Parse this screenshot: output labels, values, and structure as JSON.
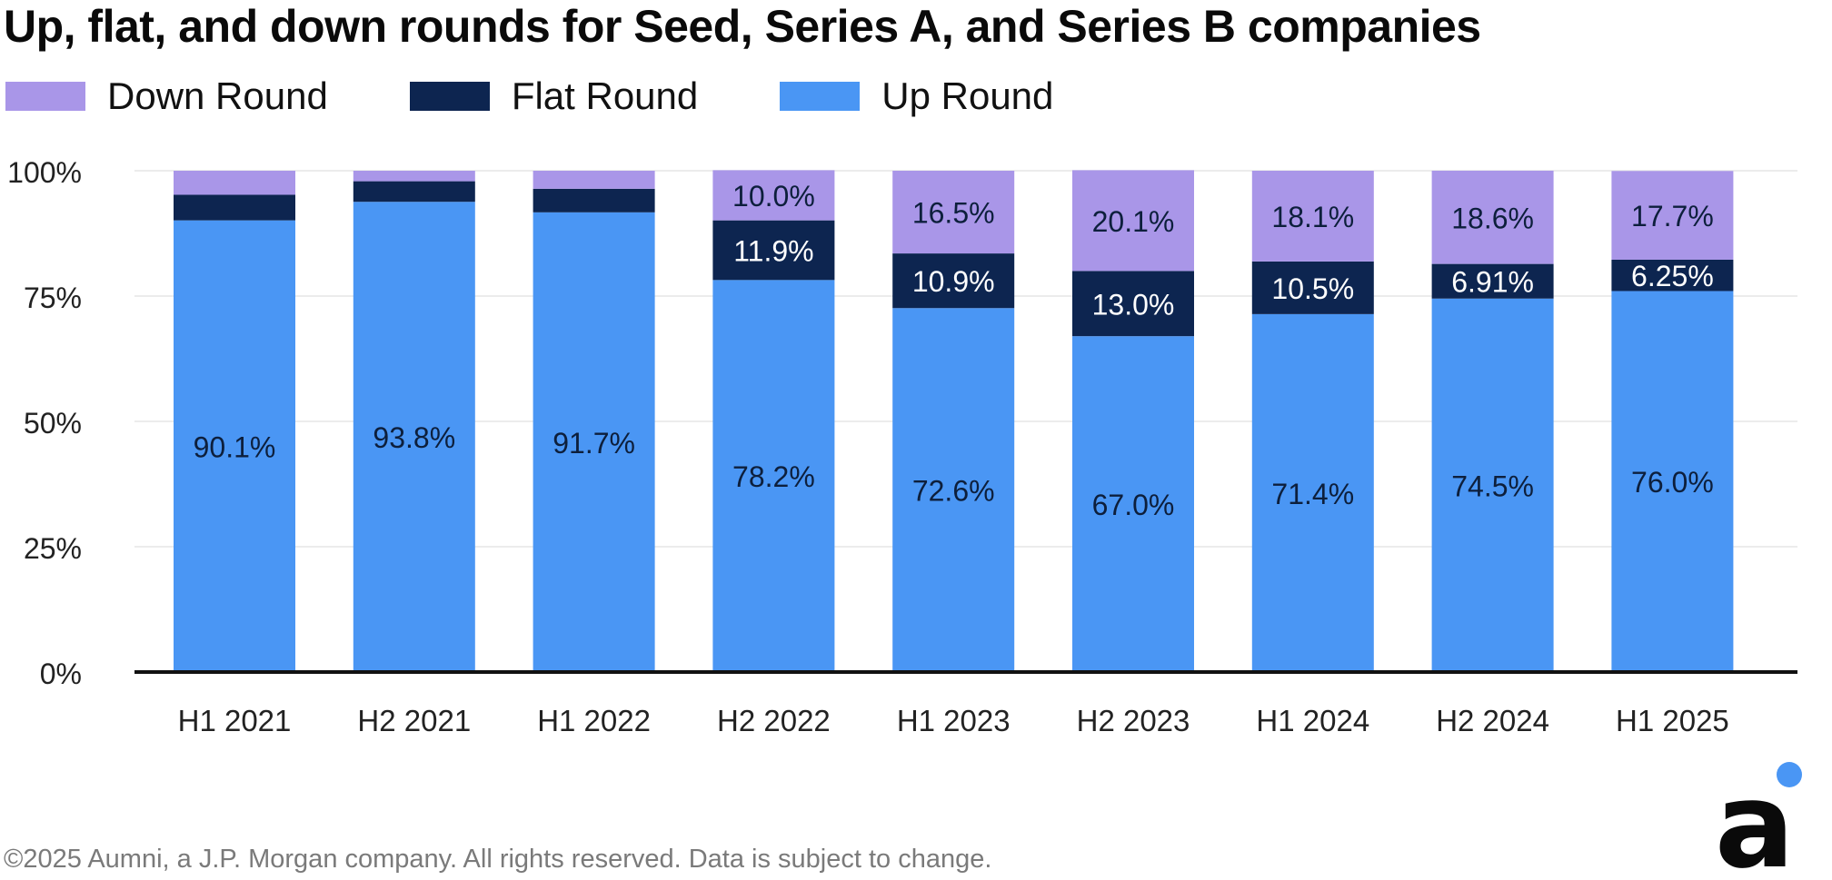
{
  "page": {
    "title": "Up, flat, and down rounds for Seed, Series A, and Series B companies",
    "footer": "©2025 Aumni, a J.P. Morgan company. All rights reserved. Data is subject to change.",
    "logo_glyph": "a",
    "colors": {
      "up": "#4a96f4",
      "flat": "#0d2550",
      "down": "#a996e8",
      "logo_dot": "#4a96f4",
      "logo_text": "#0a0a0a"
    }
  },
  "legend": [
    {
      "label": "Down Round",
      "color": "#a996e8"
    },
    {
      "label": "Flat Round",
      "color": "#0d2550"
    },
    {
      "label": "Up Round",
      "color": "#4a96f4"
    }
  ],
  "chart_data": {
    "type": "bar",
    "stacked": true,
    "title": "Up, flat, and down rounds for Seed, Series A, and Series B companies",
    "xlabel": "",
    "ylabel": "",
    "ylim": [
      0,
      100
    ],
    "y_ticks": [
      "0%",
      "25%",
      "50%",
      "75%",
      "100%"
    ],
    "y_tick_values": [
      0,
      25,
      50,
      75,
      100
    ],
    "grid": true,
    "legend_position": "top-left",
    "categories": [
      "H1 2021",
      "H2 2021",
      "H1 2022",
      "H2 2022",
      "H1 2023",
      "H2 2023",
      "H1 2024",
      "H2 2024",
      "H1 2025"
    ],
    "series": [
      {
        "name": "Up Round",
        "color": "#4a96f4",
        "values": [
          90.1,
          93.8,
          91.7,
          78.2,
          72.6,
          67.0,
          71.4,
          74.5,
          76.0
        ],
        "labels": [
          "90.1%",
          "93.8%",
          "91.7%",
          "78.2%",
          "72.6%",
          "67.0%",
          "71.4%",
          "74.5%",
          "76.0%"
        ]
      },
      {
        "name": "Flat Round",
        "color": "#0d2550",
        "values": [
          5.1,
          4.1,
          4.7,
          11.9,
          10.9,
          13.0,
          10.5,
          6.91,
          6.25
        ],
        "labels": [
          "",
          "",
          "",
          "11.9%",
          "10.9%",
          "13.0%",
          "10.5%",
          "6.91%",
          "6.25%"
        ]
      },
      {
        "name": "Down Round",
        "color": "#a996e8",
        "values": [
          4.8,
          2.1,
          3.6,
          10.0,
          16.5,
          20.1,
          18.1,
          18.6,
          17.7
        ],
        "labels": [
          "",
          "",
          "",
          "10.0%",
          "16.5%",
          "20.1%",
          "18.1%",
          "18.6%",
          "17.7%"
        ]
      }
    ]
  }
}
